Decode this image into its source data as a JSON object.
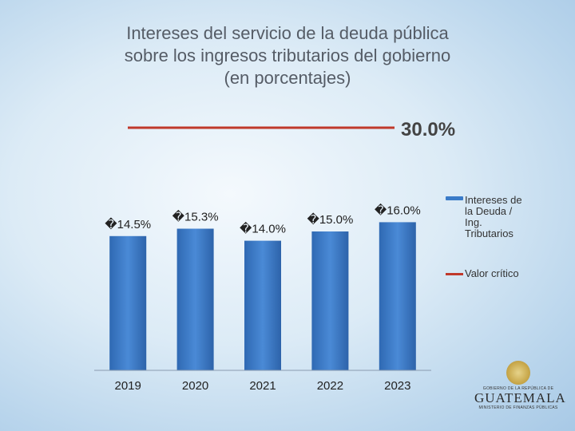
{
  "chart_data": {
    "type": "bar",
    "title_lines": [
      "Intereses del servicio de la deuda pública",
      "sobre los ingresos tributarios del gobierno",
      "(en porcentajes)"
    ],
    "categories": [
      "2019",
      "2020",
      "2021",
      "2022",
      "2023"
    ],
    "series": [
      {
        "name": "Intereses de la Deuda / Ing. Tributarios",
        "values": [
          14.5,
          15.3,
          14.0,
          15.0,
          16.0
        ],
        "labels": [
          "�14.5%",
          "�15.3%",
          "�14.0%",
          "�15.0%",
          "�16.0%"
        ],
        "color": "#3a7bc8"
      }
    ],
    "reference_line": {
      "name": "Valor crítico",
      "value": 30.0,
      "label": "30.0%",
      "color": "#c0392b"
    },
    "legend_position": "right"
  },
  "legend": {
    "bar_label_lines": [
      "Intereses de",
      "la Deuda /",
      "Ing.",
      "Tributarios"
    ],
    "line_label": "Valor crítico"
  },
  "emblem": {
    "top_text": "GOBIERNO DE LA REPÚBLICA DE",
    "main_text": "GUATEMALA",
    "sub_text": "MINISTERIO DE FINANZAS PÚBLICAS"
  }
}
